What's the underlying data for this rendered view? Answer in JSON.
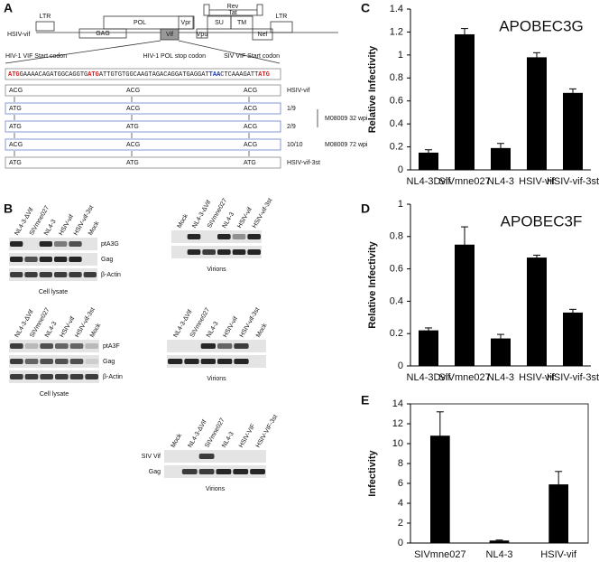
{
  "panel_labels": [
    "A",
    "B",
    "C",
    "D",
    "E"
  ],
  "genome_map": {
    "genes": [
      "LTR",
      "GAG",
      "POL",
      "Vif",
      "Vpr",
      "Rev",
      "Tat",
      "SU",
      "TM",
      "Vpu",
      "Nef",
      "LTR"
    ],
    "construct": "HSIV-vif"
  },
  "codon_labels": [
    "HIV-1 VIF Start codon",
    "HIV-1 POL stop codon",
    "SIV VIF Start codon"
  ],
  "sequence": [
    {
      "text": "ATG",
      "color": "#d42020"
    },
    {
      "text": "GAAAACAGATGGCAGGTG",
      "color": "#222222"
    },
    {
      "text": "ATG",
      "color": "#d42020"
    },
    {
      "text": "ATTGTGTGGCAAGTAGACAGGATGAGGAT",
      "color": "#222222"
    },
    {
      "text": "TAA",
      "color": "#2040c0"
    },
    {
      "text": "CTCAAAGATT",
      "color": "#222222"
    },
    {
      "text": "ATG",
      "color": "#d42020"
    }
  ],
  "codon_rows": [
    {
      "codons": [
        "ACG",
        "ACG",
        "ACG"
      ],
      "label": "HSIV-vif"
    },
    {
      "codons": [
        "ATG",
        "ACG",
        "ACG"
      ],
      "label": "1/9"
    },
    {
      "codons": [
        "ATG",
        "ATG",
        "ACG"
      ],
      "label": "2/9"
    },
    {
      "codons": [
        "ACG",
        "ACG",
        "ACG"
      ],
      "label": "10/10"
    },
    {
      "codons": [
        "ATG",
        "ATG",
        "ATG"
      ],
      "label": "HSIV-vif-3st"
    }
  ],
  "sample_labels": [
    "M08009 32 wpi",
    "M08009 72 wpi"
  ],
  "blots": [
    {
      "lanes": [
        "NL4-3-ΔVif",
        "SIVmne027",
        "NL4-3",
        "HSIV-vif",
        "HSIV-vif-3st",
        "Mock"
      ],
      "rows": [
        "ptA3G",
        "Gag",
        "β-Actin"
      ],
      "caption": "Cell lysate"
    },
    {
      "lanes": [
        "Mock",
        "NL4-3-ΔVif",
        "SIVmne027",
        "NL4-3",
        "HSIV-vif",
        "HSIV-vif-3st"
      ],
      "rows": [],
      "caption": "Virions"
    },
    {
      "lanes": [
        "NL4-3-ΔVif",
        "SIVmne027",
        "NL4-3",
        "HSIV-vif",
        "HSIV-vif-3st",
        "Mock"
      ],
      "rows": [
        "ptA3F",
        "Gag",
        "β-Actin"
      ],
      "caption": "Cell lysate"
    },
    {
      "lanes": [
        "NL4-3-ΔVif",
        "SIVmne027",
        "NL4-3",
        "HSIV-vif",
        "HSIV-vif-3st",
        "Mock"
      ],
      "rows": [],
      "caption": "Virions"
    },
    {
      "lanes": [
        "Mock",
        "NL4-3-ΔVif",
        "SIVmne027",
        "NL4-3",
        "HSIV-VIF",
        "HSIV-VIF-3st"
      ],
      "rows": [
        "SIV Vif",
        "Gag"
      ],
      "caption": "Virions"
    }
  ],
  "chart_data": [
    {
      "type": "bar",
      "title": "APOBEC3G",
      "y_label": "Relative Infectivity",
      "color": "#000000",
      "frame": false,
      "categories": [
        "NL4-3Dvif",
        "SIVmne027",
        "NL4-3",
        "HSIV-vif",
        "HSIV-vif-3st"
      ],
      "values": [
        0.15,
        1.18,
        0.19,
        0.98,
        0.67
      ],
      "errors": [
        0.025,
        0.05,
        0.04,
        0.04,
        0.035
      ],
      "ylim": [
        0,
        1.4
      ],
      "yticks": [
        0,
        0.2,
        0.4,
        0.6,
        0.8,
        1,
        1.2,
        1.4
      ]
    },
    {
      "type": "bar",
      "title": "APOBEC3F",
      "y_label": "Relative Infectivity",
      "color": "#000000",
      "frame": false,
      "categories": [
        "NL4-3Dvif",
        "SIVmne027",
        "NL4-3",
        "HSIV-vif",
        "HSIV-vif-3st"
      ],
      "values": [
        0.22,
        0.75,
        0.17,
        0.67,
        0.33
      ],
      "errors": [
        0.015,
        0.11,
        0.025,
        0.015,
        0.02
      ],
      "ylim": [
        0,
        1
      ],
      "yticks": [
        0,
        0.2,
        0.4,
        0.6,
        0.8,
        1
      ]
    },
    {
      "type": "bar",
      "y_label": "Infectivity",
      "color": "#000000",
      "frame": true,
      "categories": [
        "SIVmne027",
        "NL4-3",
        "HSIV-vif"
      ],
      "values": [
        10.8,
        0.25,
        5.9
      ],
      "errors": [
        2.4,
        0.05,
        1.3
      ],
      "ylim": [
        0,
        14
      ],
      "yticks": [
        0,
        2,
        4,
        6,
        8,
        10,
        12,
        14
      ]
    }
  ]
}
